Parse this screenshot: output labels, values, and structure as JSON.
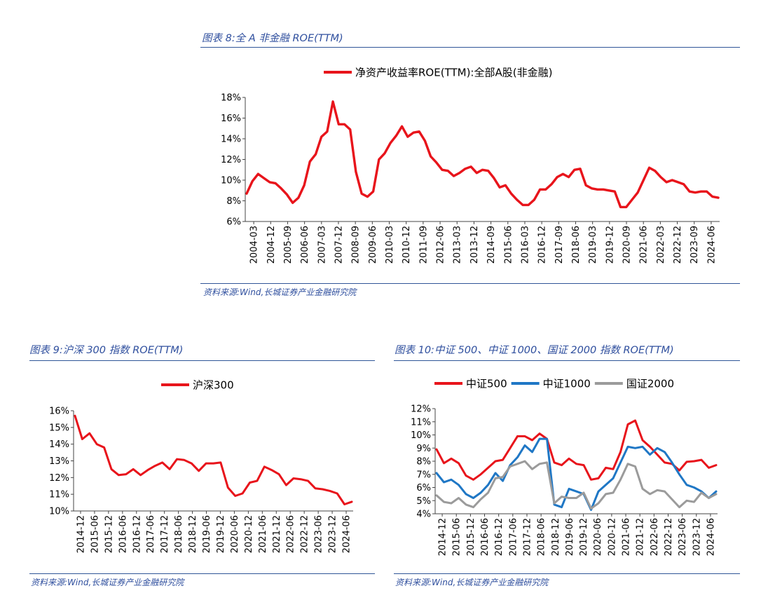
{
  "figures": {
    "f8": {
      "caption": "图表 8:全 A 非金融 ROE(TTM)",
      "source": "资料来源:Wind,长城证券产业金融研究院"
    },
    "f9": {
      "caption": "图表 9:沪深 300 指数 ROE(TTM)",
      "source": "资料来源:Wind,长城证券产业金融研究院"
    },
    "f10": {
      "caption": "图表 10:中证 500、中证 1000、国证 2000 指数 ROE(TTM)",
      "source": "资料来源:Wind,长城证券产业金融研究院"
    }
  },
  "chart_data": [
    {
      "id": "fig8",
      "type": "line",
      "ylim": [
        6,
        18
      ],
      "yticks": [
        6,
        8,
        10,
        12,
        14,
        16,
        18
      ],
      "ytick_format": "%",
      "x_tick_labels": [
        "2004-03",
        "2004-12",
        "2005-09",
        "2006-06",
        "2007-03",
        "2007-12",
        "2008-09",
        "2009-06",
        "2010-03",
        "2010-12",
        "2011-09",
        "2012-06",
        "2013-03",
        "2013-12",
        "2014-09",
        "2015-06",
        "2016-03",
        "2016-12",
        "2017-09",
        "2018-06",
        "2019-03",
        "2019-12",
        "2020-09",
        "2021-06",
        "2022-03",
        "2022-12",
        "2023-09",
        "2024-06"
      ],
      "legend_position": "top",
      "series": [
        {
          "name": "净资产收益率ROE(TTM):全部A股(非金融)",
          "color": "#e8141b",
          "values": [
            8.7,
            9.9,
            10.6,
            10.2,
            9.8,
            9.7,
            9.2,
            8.6,
            7.8,
            8.3,
            9.5,
            11.8,
            12.5,
            14.2,
            14.7,
            17.6,
            15.4,
            15.4,
            14.9,
            10.8,
            8.7,
            8.4,
            8.9,
            12.0,
            12.6,
            13.6,
            14.3,
            15.2,
            14.2,
            14.6,
            14.7,
            13.8,
            12.3,
            11.7,
            11.0,
            10.9,
            10.4,
            10.7,
            11.1,
            11.3,
            10.7,
            11.0,
            10.9,
            10.2,
            9.3,
            9.5,
            8.7,
            8.1,
            7.6,
            7.6,
            8.1,
            9.1,
            9.1,
            9.6,
            10.3,
            10.6,
            10.3,
            11.0,
            11.1,
            9.5,
            9.2,
            9.1,
            9.1,
            9.0,
            8.9,
            7.4,
            7.4,
            8.1,
            8.8,
            10.0,
            11.2,
            10.9,
            10.3,
            9.8,
            10.0,
            9.8,
            9.6,
            8.9,
            8.8,
            8.9,
            8.9,
            8.4,
            8.3
          ]
        }
      ]
    },
    {
      "id": "fig9",
      "type": "line",
      "ylim": [
        10,
        16
      ],
      "yticks": [
        10,
        11,
        12,
        13,
        14,
        15,
        16
      ],
      "ytick_format": "%",
      "x_tick_labels": [
        "2014-12",
        "2015-06",
        "2015-12",
        "2016-06",
        "2016-12",
        "2017-06",
        "2017-12",
        "2018-06",
        "2018-12",
        "2019-06",
        "2019-12",
        "2020-06",
        "2020-12",
        "2021-06",
        "2021-12",
        "2022-06",
        "2022-12",
        "2023-06",
        "2023-12",
        "2024-06"
      ],
      "legend_position": "top",
      "series": [
        {
          "name": "沪深300",
          "color": "#e8141b",
          "values": [
            15.7,
            14.3,
            14.65,
            14.0,
            13.8,
            12.5,
            12.15,
            12.2,
            12.5,
            12.15,
            12.45,
            12.7,
            12.9,
            12.5,
            13.1,
            13.05,
            12.85,
            12.4,
            12.85,
            12.85,
            12.9,
            11.4,
            10.9,
            11.05,
            11.7,
            11.8,
            12.65,
            12.45,
            12.2,
            11.55,
            11.95,
            11.9,
            11.8,
            11.35,
            11.3,
            11.2,
            11.05,
            10.4,
            10.55
          ]
        }
      ]
    },
    {
      "id": "fig10",
      "type": "line",
      "ylim": [
        4,
        12
      ],
      "yticks": [
        4,
        5,
        6,
        7,
        8,
        9,
        10,
        11,
        12
      ],
      "ytick_format": "%",
      "x_tick_labels": [
        "2014-12",
        "2015-06",
        "2015-12",
        "2016-06",
        "2016-12",
        "2017-06",
        "2017-12",
        "2018-06",
        "2018-12",
        "2019-06",
        "2019-12",
        "2020-06",
        "2020-12",
        "2021-06",
        "2021-12",
        "2022-06",
        "2022-12",
        "2023-06",
        "2023-12",
        "2024-06"
      ],
      "legend_position": "top",
      "series": [
        {
          "name": "中证500",
          "color": "#e8141b",
          "values": [
            8.9,
            7.85,
            8.2,
            7.85,
            6.9,
            6.6,
            7.0,
            7.5,
            8.0,
            8.1,
            9.0,
            9.9,
            9.9,
            9.6,
            10.1,
            9.7,
            7.9,
            7.7,
            8.2,
            7.8,
            7.7,
            6.6,
            6.7,
            7.5,
            7.4,
            8.7,
            10.8,
            11.1,
            9.6,
            9.1,
            8.5,
            7.9,
            7.8,
            7.3,
            7.95,
            8.0,
            8.1,
            7.5,
            7.7
          ]
        },
        {
          "name": "中证1000",
          "color": "#1f77c5",
          "values": [
            7.1,
            6.4,
            6.6,
            6.2,
            5.5,
            5.2,
            5.6,
            6.2,
            7.1,
            6.5,
            7.7,
            8.3,
            9.2,
            8.7,
            9.7,
            9.7,
            4.7,
            4.5,
            5.9,
            5.7,
            5.5,
            4.3,
            5.7,
            6.2,
            6.7,
            7.9,
            9.1,
            9.0,
            9.1,
            8.5,
            9.0,
            8.7,
            7.9,
            7.0,
            6.2,
            6.0,
            5.7,
            5.2,
            5.7
          ]
        },
        {
          "name": "国证2000",
          "color": "#9b9b9b",
          "values": [
            5.4,
            4.9,
            4.8,
            5.2,
            4.7,
            4.5,
            5.1,
            5.6,
            6.7,
            6.8,
            7.6,
            7.8,
            8.0,
            7.4,
            7.8,
            7.9,
            4.8,
            5.3,
            5.2,
            5.2,
            5.6,
            4.4,
            4.8,
            5.5,
            5.6,
            6.6,
            7.8,
            7.6,
            5.9,
            5.5,
            5.8,
            5.7,
            5.1,
            4.5,
            5.0,
            4.9,
            5.6,
            5.2,
            5.5
          ]
        }
      ]
    }
  ]
}
